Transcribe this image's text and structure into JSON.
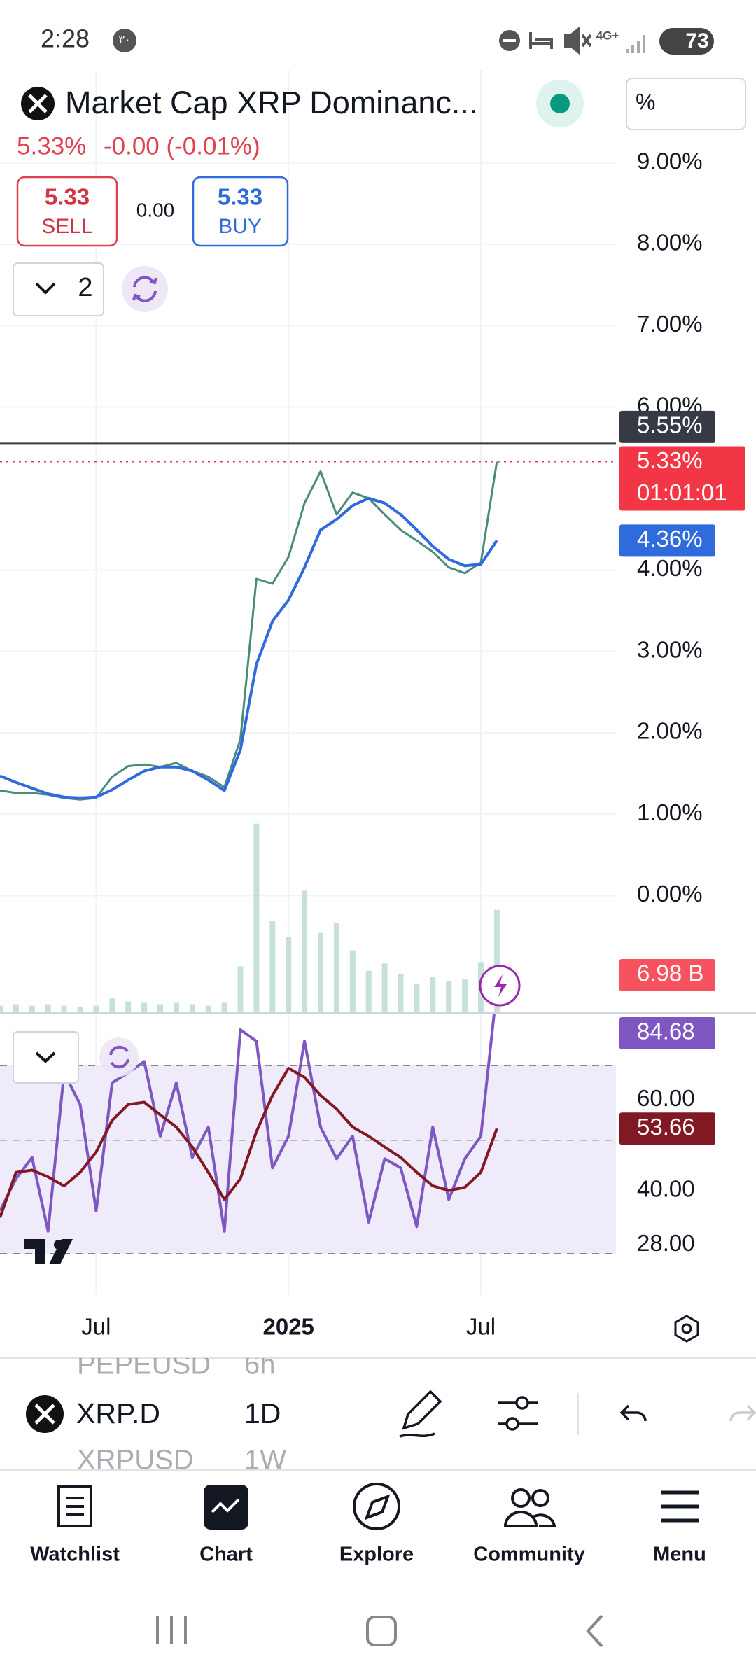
{
  "status_bar": {
    "time": "2:28",
    "badge": "۳۰",
    "network": "4G+",
    "battery": "73"
  },
  "header": {
    "title": "Market Cap XRP Dominanc...",
    "last": "5.33%",
    "change": "-0.00 (-0.01%)",
    "scale_button": "%"
  },
  "trade": {
    "sell_price": "5.33",
    "sell_label": "SELL",
    "spread": "0.00",
    "buy_price": "5.33",
    "buy_label": "BUY"
  },
  "indicators": {
    "count": "2"
  },
  "chart_data": [
    {
      "type": "line",
      "title": null,
      "categories": [
        null,
        null,
        null,
        null,
        null,
        null,
        "Jul",
        null,
        null,
        null,
        null,
        null,
        null,
        null,
        null,
        null,
        null,
        null,
        "2025",
        null,
        null,
        null,
        null,
        null,
        null,
        null,
        null,
        null,
        null,
        null,
        "Jul",
        null
      ],
      "series": [
        {
          "name": "XRP.D",
          "color": "#4a8c7a",
          "values": [
            1.29,
            1.26,
            1.26,
            1.24,
            1.2,
            1.18,
            1.2,
            1.46,
            1.59,
            1.61,
            1.58,
            1.63,
            1.53,
            1.46,
            1.33,
            1.92,
            3.89,
            3.83,
            4.16,
            4.82,
            5.21,
            4.68,
            4.95,
            4.88,
            4.68,
            4.49,
            4.36,
            4.22,
            4.03,
            3.96,
            4.09,
            5.33
          ],
          "value_labels": [
            null,
            null,
            null,
            null,
            null,
            null,
            null,
            null,
            null,
            null,
            null,
            null,
            null,
            null,
            null,
            null,
            null,
            null,
            null,
            null,
            null,
            null,
            null,
            null,
            null,
            null,
            null,
            null,
            null,
            null,
            null,
            "5.33%"
          ]
        },
        {
          "name": "MA",
          "color": "#2f6bdc",
          "values": [
            1.47,
            1.39,
            1.32,
            1.25,
            1.21,
            1.2,
            1.21,
            1.3,
            1.42,
            1.53,
            1.58,
            1.58,
            1.53,
            1.42,
            1.29,
            1.79,
            2.84,
            3.37,
            3.63,
            4.03,
            4.49,
            4.62,
            4.79,
            4.88,
            4.82,
            4.68,
            4.49,
            4.29,
            4.13,
            4.05,
            4.07,
            4.36
          ],
          "value_labels": [
            null,
            null,
            null,
            null,
            null,
            null,
            null,
            null,
            null,
            null,
            null,
            null,
            null,
            null,
            null,
            null,
            null,
            null,
            null,
            null,
            null,
            null,
            null,
            null,
            null,
            null,
            null,
            null,
            null,
            null,
            null,
            "4.36%"
          ]
        },
        {
          "name": "Volume",
          "color": "#b9d9cf",
          "values": [
            0.4,
            0.5,
            0.4,
            0.5,
            0.4,
            0.3,
            0.4,
            0.9,
            0.7,
            0.6,
            0.5,
            0.6,
            0.5,
            0.4,
            0.6,
            3.1,
            12.9,
            6.2,
            5.1,
            8.3,
            5.4,
            6.1,
            4.2,
            2.8,
            3.3,
            2.6,
            1.9,
            2.4,
            2.1,
            2.2,
            3.4,
            6.98
          ],
          "value_labels": [
            null,
            null,
            null,
            null,
            null,
            null,
            null,
            null,
            null,
            null,
            null,
            null,
            null,
            null,
            null,
            null,
            null,
            null,
            null,
            null,
            null,
            null,
            null,
            null,
            null,
            null,
            null,
            null,
            null,
            null,
            null,
            "6.98 B"
          ]
        }
      ],
      "high_line": {
        "value": 5.55,
        "label": "5.55%"
      },
      "countdown": "01:01:01",
      "ylim": [
        -1.44,
        10.14
      ],
      "yticks": [
        {
          "value": 0,
          "label": "0.00%"
        },
        {
          "value": 1,
          "label": "1.00%"
        },
        {
          "value": 2,
          "label": "2.00%"
        },
        {
          "value": 3,
          "label": "3.00%"
        },
        {
          "value": 4,
          "label": "4.00%"
        },
        {
          "value": 6,
          "label": "6.00%"
        },
        {
          "value": 7,
          "label": "7.00%"
        },
        {
          "value": 8,
          "label": "8.00%"
        },
        {
          "value": 9,
          "label": "9.00%"
        }
      ],
      "grid": true
    },
    {
      "type": "line",
      "title": null,
      "series": [
        {
          "name": "RSI",
          "color": "#7e57c2",
          "values": [
            35.5,
            42.6,
            47.3,
            31,
            66,
            59,
            35.5,
            63.8,
            66,
            68.5,
            52,
            63.8,
            47.3,
            54,
            31,
            75.5,
            73,
            45,
            52,
            73,
            54,
            47,
            52,
            33,
            47,
            45,
            32,
            54,
            38,
            47,
            52,
            84.68
          ],
          "value_labels": [
            null,
            null,
            null,
            null,
            null,
            null,
            null,
            null,
            null,
            null,
            null,
            null,
            null,
            null,
            null,
            null,
            null,
            null,
            null,
            null,
            null,
            null,
            null,
            null,
            null,
            null,
            null,
            null,
            null,
            null,
            null,
            "84.68"
          ]
        },
        {
          "name": "RSI MA",
          "color": "#801922",
          "values": [
            34,
            44,
            44.5,
            43,
            41,
            44,
            48.5,
            55.5,
            59,
            59.5,
            56.7,
            54,
            49.6,
            44,
            38,
            42.6,
            53,
            61,
            67,
            65,
            61,
            58,
            54,
            52,
            49.6,
            47.3,
            44,
            41,
            40,
            40.7,
            44,
            53.66
          ],
          "value_labels": [
            null,
            null,
            null,
            null,
            null,
            null,
            null,
            null,
            null,
            null,
            null,
            null,
            null,
            null,
            null,
            null,
            null,
            null,
            null,
            null,
            null,
            null,
            null,
            null,
            null,
            null,
            null,
            null,
            null,
            null,
            null,
            "53.66"
          ]
        }
      ],
      "ylim": [
        16.9,
        78.9
      ],
      "yticks": [
        {
          "value": 28,
          "label": "28.00"
        },
        {
          "value": 40,
          "label": "40.00"
        },
        {
          "value": 60,
          "label": "60.00"
        }
      ],
      "grid": false
    }
  ],
  "toolbar": {
    "symbol": "XRP.D",
    "interval": "1D",
    "behind": [
      {
        "symbol": "PEPEUSD",
        "interval": "6h"
      },
      {
        "symbol": "XRPUSD",
        "interval": "1W"
      }
    ]
  },
  "nav": [
    "Watchlist",
    "Chart",
    "Explore",
    "Community",
    "Menu"
  ]
}
